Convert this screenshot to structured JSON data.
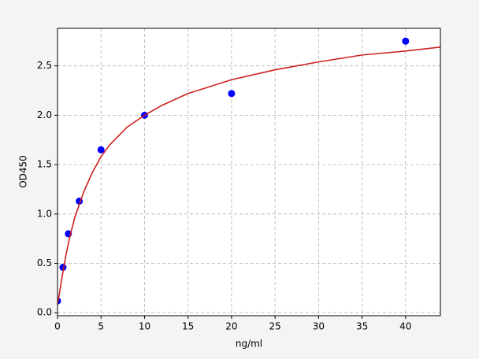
{
  "chart_data": {
    "type": "scatter",
    "x_label": "ng/ml",
    "y_label": "OD450",
    "xlim": [
      0,
      44
    ],
    "ylim": [
      -0.03,
      2.88
    ],
    "xticks": [
      0,
      5,
      10,
      15,
      20,
      25,
      30,
      35,
      40
    ],
    "yticks": [
      {
        "value": 0,
        "label": "0.0"
      },
      0.5,
      {
        "value": 1,
        "label": "1.0"
      },
      1.5,
      {
        "value": 2,
        "label": "2.0"
      },
      2.5
    ],
    "grid": true,
    "series": [
      {
        "mode": "markers",
        "color": "#0000ff",
        "x": [
          0,
          0.625,
          1.25,
          2.5,
          5,
          10,
          20,
          40
        ],
        "values": [
          0.12,
          0.46,
          0.8,
          1.13,
          1.65,
          2.0,
          2.22,
          2.75
        ]
      },
      {
        "mode": "line",
        "color": "#cc2020",
        "x": [
          0,
          0.5,
          1,
          1.5,
          2,
          3,
          4,
          5,
          6,
          8,
          10,
          12,
          15,
          20,
          25,
          30,
          35,
          40,
          44
        ],
        "values": [
          0.08,
          0.35,
          0.6,
          0.8,
          0.97,
          1.22,
          1.42,
          1.58,
          1.7,
          1.88,
          2.0,
          2.1,
          2.22,
          2.36,
          2.46,
          2.54,
          2.61,
          2.65,
          2.69
        ]
      }
    ]
  }
}
